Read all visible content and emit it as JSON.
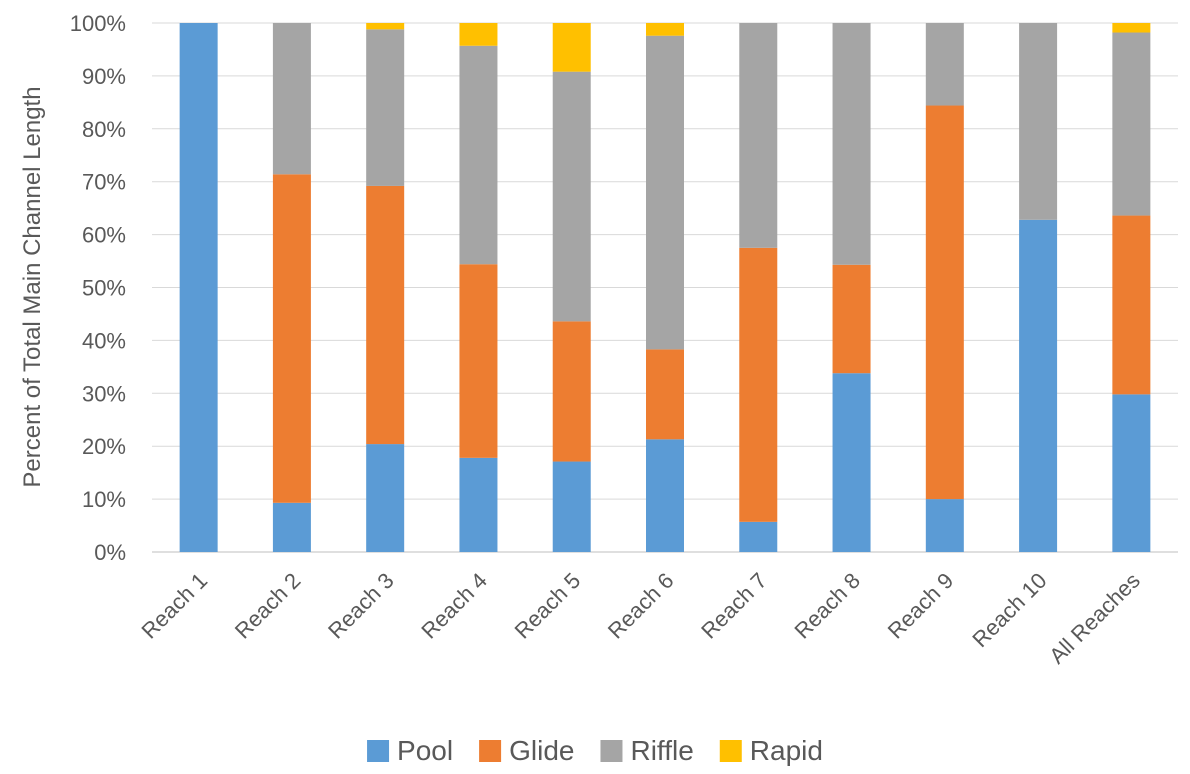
{
  "chart_data": {
    "type": "bar",
    "stacked": true,
    "title": "",
    "xlabel": "",
    "ylabel": "Percent of Total Main Channel Length",
    "ylim": [
      0,
      100
    ],
    "yticks": [
      "0%",
      "10%",
      "20%",
      "30%",
      "40%",
      "50%",
      "60%",
      "70%",
      "80%",
      "90%",
      "100%"
    ],
    "grid": true,
    "legend_position": "bottom",
    "categories": [
      "Reach 1",
      "Reach 2",
      "Reach 3",
      "Reach 4",
      "Reach 5",
      "Reach 6",
      "Reach 7",
      "Reach 8",
      "Reach 9",
      "Reach 10",
      "All Reaches"
    ],
    "series": [
      {
        "name": "Pool",
        "color": "#5B9BD5",
        "values": [
          100,
          9.3,
          20.4,
          17.8,
          17.1,
          21.3,
          5.7,
          33.8,
          10.0,
          62.8,
          29.8
        ]
      },
      {
        "name": "Glide",
        "color": "#ED7D31",
        "values": [
          0,
          62.1,
          48.8,
          36.6,
          26.5,
          17.0,
          51.8,
          20.5,
          74.4,
          0,
          33.8
        ]
      },
      {
        "name": "Riffle",
        "color": "#A5A5A5",
        "values": [
          0,
          28.6,
          29.6,
          41.3,
          47.2,
          59.3,
          42.5,
          45.7,
          15.6,
          37.2,
          34.6
        ]
      },
      {
        "name": "Rapid",
        "color": "#FFC000",
        "values": [
          0,
          0,
          1.2,
          4.3,
          9.2,
          2.4,
          0,
          0,
          0,
          0,
          1.8
        ]
      }
    ]
  }
}
